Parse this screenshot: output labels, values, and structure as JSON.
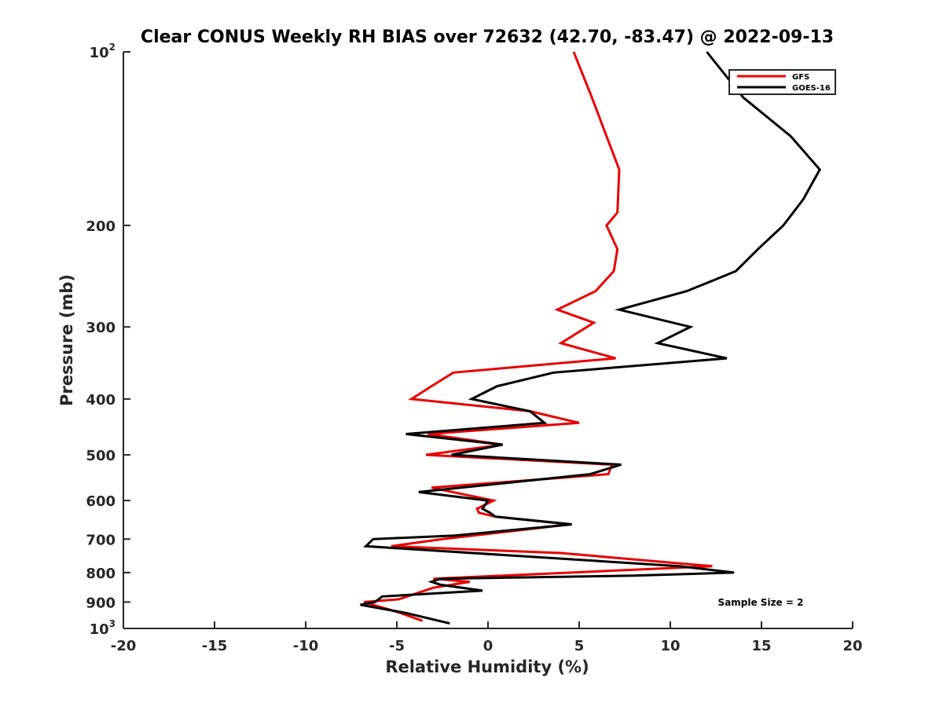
{
  "chart_data": {
    "type": "line",
    "title": "Clear CONUS Weekly RH BIAS over 72632 (42.70, -83.47) @ 2022-09-13",
    "xlabel": "Relative Humidity (%)",
    "ylabel": "Pressure (mb)",
    "xlim": [
      -20,
      20
    ],
    "ylim": [
      100,
      1000
    ],
    "yscale": "log",
    "y_reversed": true,
    "grid": false,
    "legend_position": "top-right",
    "x_ticks": [
      "-20",
      "-15",
      "-10",
      "-5",
      "0",
      "5",
      "10",
      "15",
      "20"
    ],
    "y_ticks": [
      {
        "value": 100,
        "base": "10",
        "exp": "2"
      },
      {
        "value": 200,
        "label": "200"
      },
      {
        "value": 300,
        "label": "300"
      },
      {
        "value": 400,
        "label": "400"
      },
      {
        "value": 500,
        "label": "500"
      },
      {
        "value": 600,
        "label": "600"
      },
      {
        "value": 700,
        "label": "700"
      },
      {
        "value": 800,
        "label": "800"
      },
      {
        "value": 900,
        "label": "900"
      },
      {
        "value": 1000,
        "base": "10",
        "exp": "3"
      }
    ],
    "annotation": "Sample Size = 2",
    "series": [
      {
        "name": "GFS",
        "color": "#e60000",
        "points": [
          [
            4.7,
            100
          ],
          [
            5.7,
            120
          ],
          [
            6.5,
            140
          ],
          [
            7.2,
            160
          ],
          [
            7.1,
            190
          ],
          [
            6.5,
            200
          ],
          [
            7.1,
            220
          ],
          [
            6.9,
            240
          ],
          [
            5.9,
            260
          ],
          [
            3.8,
            280
          ],
          [
            5.8,
            295
          ],
          [
            4.0,
            320
          ],
          [
            7.0,
            340
          ],
          [
            -1.9,
            360
          ],
          [
            -3.1,
            380
          ],
          [
            -4.2,
            400
          ],
          [
            2.3,
            420
          ],
          [
            5.0,
            440
          ],
          [
            -3.3,
            460
          ],
          [
            0.8,
            480
          ],
          [
            -3.4,
            500
          ],
          [
            6.8,
            520
          ],
          [
            6.6,
            540
          ],
          [
            -3.1,
            570
          ],
          [
            0.3,
            600
          ],
          [
            -0.6,
            620
          ],
          [
            -0.5,
            630
          ],
          [
            0.4,
            640
          ],
          [
            4.5,
            660
          ],
          [
            -2.5,
            700
          ],
          [
            -5.3,
            720
          ],
          [
            4.0,
            740
          ],
          [
            12.3,
            780
          ],
          [
            -3.0,
            820
          ],
          [
            -1.0,
            830
          ],
          [
            -3.0,
            850
          ],
          [
            -4.9,
            890
          ],
          [
            -6.8,
            900
          ],
          [
            -4.8,
            940
          ],
          [
            -3.6,
            970
          ]
        ]
      },
      {
        "name": "GOES-16",
        "color": "#000000",
        "points": [
          [
            12.0,
            100
          ],
          [
            14.0,
            120
          ],
          [
            16.6,
            140
          ],
          [
            18.2,
            160
          ],
          [
            17.3,
            180
          ],
          [
            16.2,
            200
          ],
          [
            14.8,
            220
          ],
          [
            13.6,
            240
          ],
          [
            10.9,
            260
          ],
          [
            7.2,
            280
          ],
          [
            11.1,
            300
          ],
          [
            9.3,
            320
          ],
          [
            13.1,
            340
          ],
          [
            3.6,
            360
          ],
          [
            0.5,
            380
          ],
          [
            -0.9,
            400
          ],
          [
            2.3,
            420
          ],
          [
            3.1,
            440
          ],
          [
            -4.5,
            460
          ],
          [
            0.8,
            480
          ],
          [
            -2.0,
            500
          ],
          [
            7.3,
            520
          ],
          [
            5.6,
            540
          ],
          [
            -3.8,
            580
          ],
          [
            0.0,
            600
          ],
          [
            -0.3,
            620
          ],
          [
            0.1,
            630
          ],
          [
            0.4,
            640
          ],
          [
            4.6,
            660
          ],
          [
            -1.8,
            690
          ],
          [
            -6.3,
            700
          ],
          [
            -6.7,
            720
          ],
          [
            10.5,
            780
          ],
          [
            13.5,
            800
          ],
          [
            8.0,
            810
          ],
          [
            -2.6,
            820
          ],
          [
            -3.1,
            830
          ],
          [
            -2.6,
            840
          ],
          [
            -0.3,
            860
          ],
          [
            -5.8,
            880
          ],
          [
            -6.2,
            900
          ],
          [
            -7.0,
            910
          ],
          [
            -4.5,
            940
          ],
          [
            -2.1,
            980
          ]
        ]
      }
    ]
  }
}
